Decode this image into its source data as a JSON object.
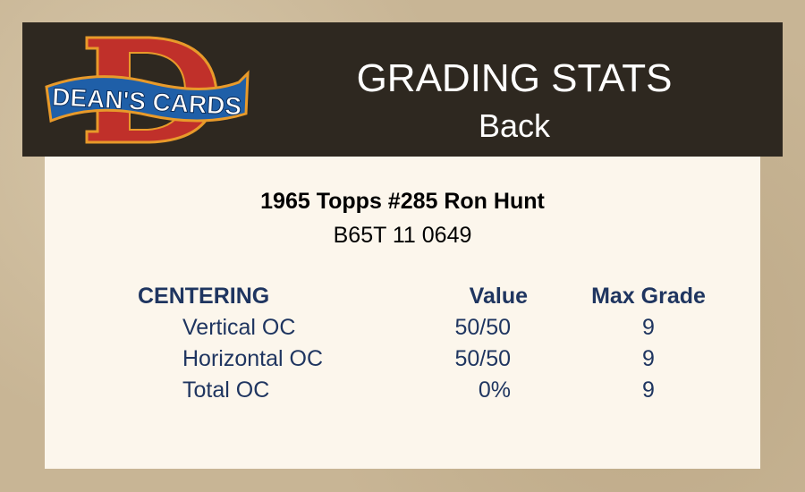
{
  "header": {
    "logo_text": "DEAN'S CARDS",
    "title": "GRADING STATS",
    "subtitle": "Back"
  },
  "card": {
    "name": "1965 Topps #285 Ron Hunt",
    "cert": "B65T 11 0649"
  },
  "table": {
    "headers": [
      "CENTERING",
      "Value",
      "Max Grade"
    ],
    "rows": [
      {
        "label": "Vertical OC",
        "value": "50/50",
        "max": "9"
      },
      {
        "label": "Horizontal OC",
        "value": "50/50",
        "max": "9"
      },
      {
        "label": "Total OC",
        "value": "0%",
        "max": "9"
      }
    ]
  },
  "colors": {
    "header_bg": "#2e2820",
    "panel_bg": "#fcf6ec",
    "text_navy": "#1f3560",
    "logo_red": "#c0302a",
    "logo_blue": "#1f5fa8"
  }
}
